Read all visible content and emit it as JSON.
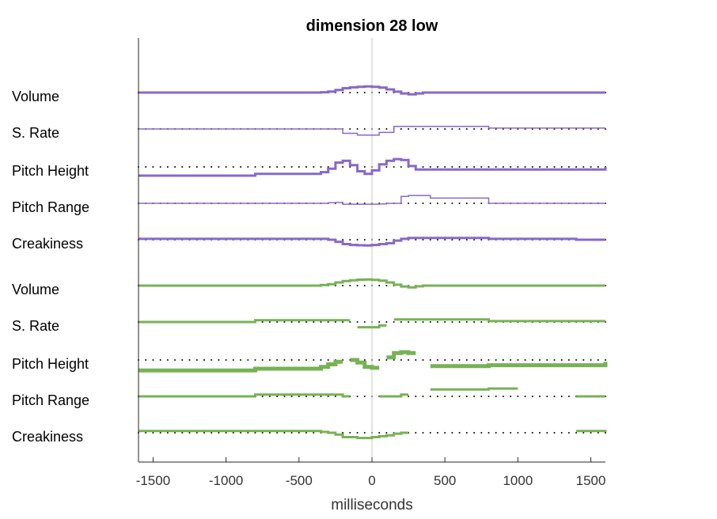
{
  "chart_data": {
    "type": "line",
    "title": "dimension 28 low",
    "xlabel": "milliseconds",
    "ylabel": "",
    "xlim": [
      -1600,
      1600
    ],
    "xticks": [
      -1500,
      -1000,
      -500,
      0,
      500,
      1000,
      1500
    ],
    "tick_labels": [
      "-1500",
      "-1000",
      "-500",
      "0",
      "500",
      "1000",
      "1500"
    ],
    "zero_line": true,
    "colors": {
      "purple": "#8868c8",
      "green": "#77b255",
      "dots": "#000000",
      "zero": "#c8c8c8"
    },
    "row_labels": [
      "Volume",
      "S. Rate",
      "Pitch Height",
      "Pitch Range",
      "Creakiness",
      "Volume",
      "S. Rate",
      "Pitch Height",
      "Pitch Range",
      "Creakiness"
    ],
    "x": [
      -1600,
      -1400,
      -1200,
      -1000,
      -800,
      -600,
      -400,
      -350,
      -300,
      -250,
      -200,
      -150,
      -100,
      -50,
      0,
      50,
      100,
      150,
      200,
      250,
      300,
      350,
      400,
      600,
      800,
      1000,
      1200,
      1400,
      1600
    ],
    "series": [
      {
        "group": "purple",
        "row": 0,
        "width": 3,
        "values": [
          0,
          0,
          0,
          0,
          0,
          0,
          0,
          0.2,
          0.6,
          1.5,
          2.5,
          3,
          3.3,
          3.5,
          3.3,
          2.8,
          1.8,
          0.5,
          -0.5,
          -1,
          -0.5,
          0,
          0,
          0,
          0,
          0,
          0,
          0,
          0
        ]
      },
      {
        "group": "purple",
        "row": 1,
        "width": 1.5,
        "values": [
          0,
          0,
          0,
          0,
          0,
          0,
          0,
          0,
          0,
          0,
          -2.5,
          -2.5,
          -3.5,
          -3.5,
          -3.5,
          -2,
          -2,
          1.5,
          1.5,
          1.5,
          1.5,
          1.5,
          1.5,
          1.5,
          0.5,
          0.5,
          0.5,
          0.5,
          0.5
        ]
      },
      {
        "group": "purple",
        "row": 2,
        "width": 3,
        "values": [
          -5,
          -5,
          -5,
          -5,
          -4,
          -4,
          -4,
          -3,
          -1,
          2.5,
          3.5,
          1,
          -2.5,
          -4,
          -2,
          1.5,
          3.5,
          4.5,
          4,
          0.5,
          -1.5,
          -1.5,
          -1.5,
          -1.5,
          -1.5,
          -1.5,
          -1.5,
          -1.5,
          0
        ]
      },
      {
        "group": "purple",
        "row": 3,
        "width": 1.5,
        "values": [
          0,
          0,
          0,
          0,
          0,
          0,
          0,
          0,
          0.3,
          0.5,
          -0.5,
          -0.5,
          -0.5,
          -0.5,
          -0.5,
          -0.3,
          0,
          0,
          4,
          4.5,
          4.5,
          4.5,
          3,
          3,
          0,
          0,
          0,
          0,
          0
        ]
      },
      {
        "group": "purple",
        "row": 4,
        "width": 3,
        "values": [
          0.5,
          0.5,
          0.5,
          0.5,
          0.5,
          0.5,
          0.5,
          0.5,
          0,
          -1.2,
          -2.5,
          -3,
          -3.2,
          -3.3,
          -3,
          -2.5,
          -2,
          -0.5,
          0.5,
          1,
          1,
          1,
          1,
          1,
          0.5,
          0.5,
          0.5,
          0,
          0
        ]
      },
      {
        "group": "green",
        "row": 5,
        "width": 3,
        "values": [
          0,
          0,
          0,
          0,
          0,
          0,
          0,
          0.3,
          0.8,
          1.8,
          2.6,
          3.1,
          3.4,
          3.5,
          3.3,
          2.8,
          1.8,
          0.5,
          -0.5,
          -1,
          -0.4,
          0,
          0,
          0,
          0,
          0,
          0,
          0,
          0
        ]
      },
      {
        "group": "green",
        "row": 6,
        "width": 3,
        "values": [
          0,
          0,
          0,
          0,
          1,
          1,
          1,
          1,
          1,
          1,
          1,
          null,
          -3,
          -3,
          -3,
          -2,
          null,
          1.5,
          1.5,
          1.5,
          1.5,
          1.5,
          1.5,
          1.5,
          0.5,
          0.5,
          0.5,
          0.5,
          0.5
        ]
      },
      {
        "group": "green",
        "row": 7,
        "width": 5,
        "values": [
          -6,
          -6,
          -6,
          -6,
          -5,
          -5,
          -5,
          -4,
          -2.5,
          -1,
          null,
          0,
          -1.5,
          -4,
          -4.5,
          null,
          1.5,
          4,
          4.5,
          4,
          null,
          null,
          -3.5,
          -3.5,
          -3,
          -3,
          -3,
          -3,
          -1
        ]
      },
      {
        "group": "green",
        "row": 8,
        "width": 3,
        "values": [
          0,
          0,
          0,
          0,
          1,
          1,
          1,
          1,
          1,
          1,
          0,
          null,
          null,
          null,
          null,
          0,
          0,
          0,
          1,
          null,
          null,
          null,
          4,
          4,
          4.5,
          null,
          null,
          0,
          0
        ]
      },
      {
        "group": "green",
        "row": 9,
        "width": 3,
        "values": [
          1,
          1,
          1,
          1,
          1,
          1,
          1,
          0.5,
          0,
          -1,
          -2.5,
          -2.5,
          -3,
          -3,
          -2.5,
          -2,
          -1.5,
          -0.5,
          0,
          null,
          null,
          null,
          null,
          null,
          null,
          null,
          null,
          1,
          0.5
        ]
      }
    ]
  }
}
